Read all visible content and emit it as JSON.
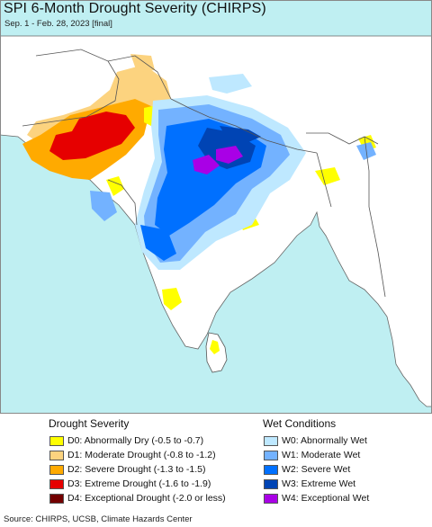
{
  "title": "SPI 6-Month Drought Severity (CHIRPS)",
  "subtitle": "Sep. 1 - Feb. 28, 2023 [final]",
  "colors": {
    "ocean": "#bfeff2",
    "land": "#ffffff",
    "no_data": "#ffffff",
    "borders": "#555555"
  },
  "legend": {
    "drought": {
      "heading": "Drought Severity",
      "items": [
        {
          "label": "D0: Abnormally Dry (-0.5 to -0.7)",
          "color": "#ffff00"
        },
        {
          "label": "D1: Moderate Drought (-0.8 to -1.2)",
          "color": "#fcd37f"
        },
        {
          "label": "D2: Severe Drought (-1.3 to -1.5)",
          "color": "#ffaa00"
        },
        {
          "label": "D3: Extreme Drought (-1.6 to -1.9)",
          "color": "#e60000"
        },
        {
          "label": "D4: Exceptional Drought (-2.0 or less)",
          "color": "#730000"
        }
      ]
    },
    "wet": {
      "heading": "Wet Conditions",
      "items": [
        {
          "label": "W0: Abnormally Wet",
          "color": "#bee8ff"
        },
        {
          "label": "W1: Moderate Wet",
          "color": "#73b2ff"
        },
        {
          "label": "W2: Severe Wet",
          "color": "#0070ff"
        },
        {
          "label": "W3: Extreme Wet",
          "color": "#0044b4"
        },
        {
          "label": "W4: Exceptional Wet",
          "color": "#a900e6"
        }
      ]
    }
  },
  "source": "Source: CHIRPS, UCSB, Climate Hazards Center"
}
